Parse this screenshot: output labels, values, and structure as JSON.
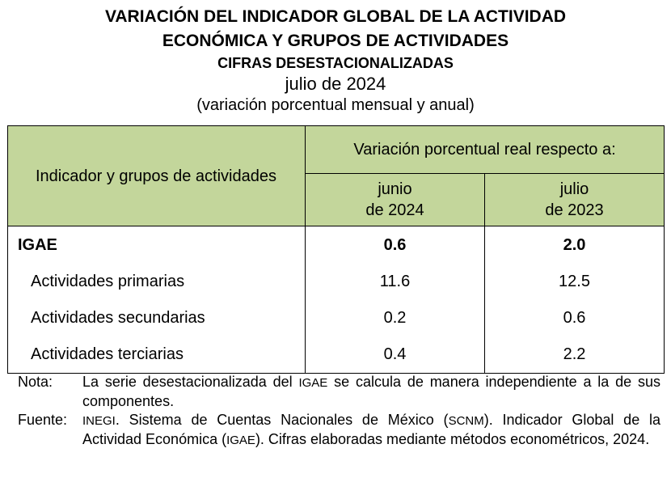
{
  "title": {
    "line1": "VARIACIÓN DEL INDICADOR GLOBAL DE LA ACTIVIDAD",
    "line2": "ECONÓMICA Y GRUPOS DE ACTIVIDADES",
    "line3": "CIFRAS DESESTACIONALIZADAS",
    "line4": "julio de 2024",
    "line5": "(variación porcentual mensual y anual)"
  },
  "table": {
    "header": {
      "indicator": "Indicador y grupos de actividades",
      "variation": "Variación porcentual real respecto a:",
      "col1_line1": "junio",
      "col1_line2": "de 2024",
      "col2_line1": "julio",
      "col2_line2": "de 2023"
    },
    "rows": [
      {
        "name": "IGAE",
        "junio_2024": "0.6",
        "julio_2023": "2.0"
      },
      {
        "name": "Actividades primarias",
        "junio_2024": "11.6",
        "julio_2023": "12.5"
      },
      {
        "name": "Actividades secundarias",
        "junio_2024": "0.2",
        "julio_2023": "0.6"
      },
      {
        "name": "Actividades terciarias",
        "junio_2024": "0.4",
        "julio_2023": "2.2"
      }
    ]
  },
  "notes": {
    "nota_label": "Nota:",
    "nota_text_a": "La serie desestacionalizada del ",
    "nota_abbr": "IGAE",
    "nota_text_b": " se calcula de manera independiente a la de sus componentes.",
    "fuente_label": "Fuente:",
    "fuente_abbr1": "INEGI",
    "fuente_text_a": ". Sistema de Cuentas Nacionales de México (",
    "fuente_abbr2": "SCNM",
    "fuente_text_b": "). Indicador Global de la Actividad Económica (",
    "fuente_abbr3": "IGAE",
    "fuente_text_c": "). Cifras elaboradas mediante métodos econométricos, 2024."
  }
}
